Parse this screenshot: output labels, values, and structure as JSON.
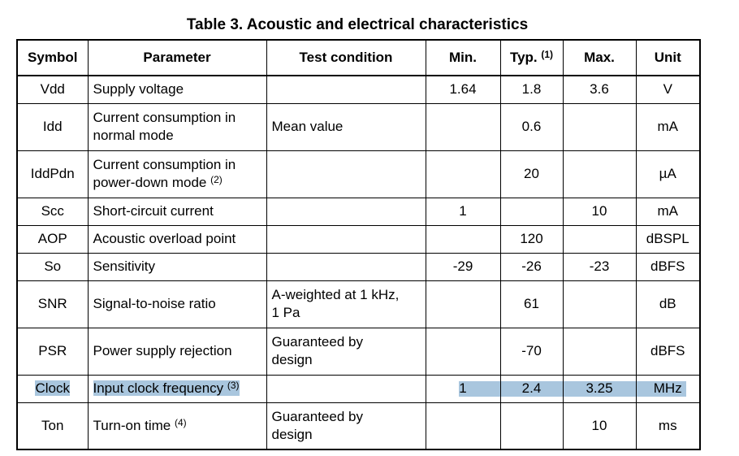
{
  "title": "Table 3. Acoustic and electrical characteristics",
  "table": {
    "header": [
      {
        "text": "Symbol"
      },
      {
        "text": "Parameter"
      },
      {
        "text": "Test condition"
      },
      {
        "text": "Min."
      },
      {
        "text": "Typ.",
        "note": "(1)"
      },
      {
        "text": "Max."
      },
      {
        "text": "Unit"
      }
    ],
    "rows": [
      {
        "symbol": "Vdd",
        "parameter": [
          "Supply voltage"
        ],
        "min": "1.64",
        "typ": "1.8",
        "max": "3.6",
        "unit": "V"
      },
      {
        "symbol": "Idd",
        "parameter": [
          "Current consumption in",
          "normal mode"
        ],
        "condition": [
          "Mean value"
        ],
        "typ": "0.6",
        "unit": "mA"
      },
      {
        "symbol": "IddPdn",
        "parameter": [
          "Current consumption in",
          "power-down mode"
        ],
        "note": "(2)",
        "typ": "20",
        "unit": "µA"
      },
      {
        "symbol": "Scc",
        "parameter": [
          "Short-circuit current"
        ],
        "min": "1",
        "max": "10",
        "unit": "mA"
      },
      {
        "symbol": "AOP",
        "parameter": [
          "Acoustic overload point"
        ],
        "typ": "120",
        "unit": "dBSPL"
      },
      {
        "symbol": "So",
        "parameter": [
          "Sensitivity"
        ],
        "min": "-29",
        "typ": "-26",
        "max": "-23",
        "unit": "dBFS"
      },
      {
        "symbol": "SNR",
        "parameter": [
          "Signal-to-noise ratio"
        ],
        "condition": [
          "A-weighted at 1 kHz,",
          "1 Pa"
        ],
        "typ": "61",
        "unit": "dB"
      },
      {
        "symbol": "PSR",
        "parameter": [
          "Power supply rejection"
        ],
        "condition": [
          "Guaranteed by",
          "design"
        ],
        "typ": "-70",
        "unit": "dBFS"
      },
      {
        "symbol": "Clock",
        "parameter": [
          "Input clock frequency"
        ],
        "note": "(3)",
        "min": "1",
        "typ": "2.4",
        "max": "3.25",
        "unit": "MHz",
        "highlighted": true
      },
      {
        "symbol": "Ton",
        "parameter": [
          "Turn-on time"
        ],
        "note": "(4)",
        "condition": [
          "Guaranteed by",
          "design"
        ],
        "max": "10",
        "unit": "ms"
      }
    ]
  }
}
